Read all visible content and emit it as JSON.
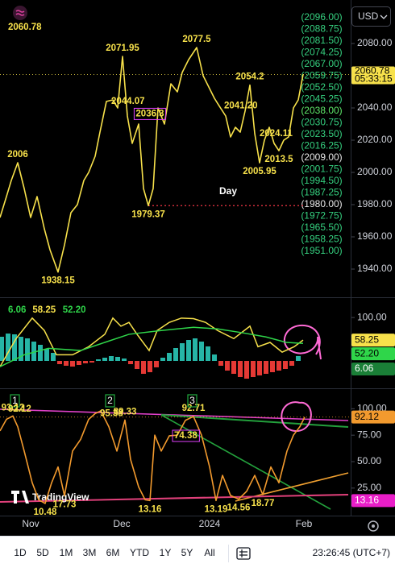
{
  "toolbar": {
    "currency": "USD",
    "ranges": [
      "1D",
      "5D",
      "1M",
      "3M",
      "6M",
      "YTD",
      "1Y",
      "5Y",
      "All"
    ],
    "clock": "23:26:45 (UTC+7)"
  },
  "watermark": "TradingView",
  "chart_data": [
    {
      "type": "line",
      "color": "#f7e14b",
      "xlim": [
        0,
        109
      ],
      "ylim": [
        1923,
        2107
      ],
      "yticks": [
        {
          "value": 2080,
          "label": "2080.00"
        },
        {
          "value": 2060,
          "label": "2060.00"
        },
        {
          "value": 2040,
          "label": "2040.00"
        },
        {
          "value": 2020,
          "label": "2020.00"
        },
        {
          "value": 2000,
          "label": "2000.00"
        },
        {
          "value": 1980,
          "label": "1980.00"
        },
        {
          "value": 1960,
          "label": "1960.00"
        },
        {
          "value": 1940,
          "label": "1940.00"
        }
      ],
      "xticks": [
        {
          "value": 9.5,
          "label": "Nov"
        },
        {
          "value": 37.75,
          "label": "Dec"
        },
        {
          "value": 65,
          "label": "2024"
        },
        {
          "value": 94.25,
          "label": "Feb"
        }
      ],
      "x": [
        0,
        2,
        3.5,
        5.5,
        7.5,
        9.5,
        11.5,
        13.75,
        15.5,
        18,
        20,
        22,
        24,
        26,
        27.5,
        29.5,
        31,
        33,
        35,
        36.5,
        38,
        39.5,
        41,
        43,
        44.5,
        46,
        47.5,
        49,
        51,
        53,
        55,
        56.5,
        58.5,
        61,
        63,
        65,
        66.5,
        68,
        70,
        71.5,
        73,
        74.5,
        76,
        77.5,
        79,
        80.5,
        82,
        83.5,
        85,
        86.5,
        88,
        89.5,
        91,
        92.5,
        94
      ],
      "values": [
        1972,
        1985,
        1995,
        2006,
        1990,
        1972,
        1985,
        1965,
        1952,
        1938.15,
        1955,
        1975,
        1980,
        1995,
        2000,
        2010,
        2025,
        2044.07,
        2045,
        2040,
        2071.95,
        2035,
        2018,
        2030,
        1990,
        1979.37,
        1990,
        2040,
        2030,
        2055,
        2050,
        2062,
        2070,
        2077.5,
        2060,
        2052,
        2046,
        2041.2,
        2035,
        2022,
        2028,
        2025,
        2038,
        2054.2,
        2024.11,
        2005.95,
        2020,
        2028,
        2018,
        2013.5,
        2020,
        2022,
        2040,
        2045,
        2060.78
      ],
      "value_labels": [
        null,
        null,
        null,
        null,
        null,
        null,
        null,
        null,
        null,
        null,
        null,
        null,
        null,
        null,
        null,
        null,
        null,
        null,
        null,
        null,
        null,
        null,
        null,
        null,
        null,
        null,
        null,
        null,
        null,
        null,
        null,
        null,
        null,
        null,
        null,
        null,
        null,
        "2041.20",
        null,
        null,
        null,
        null,
        null,
        null,
        null,
        null,
        null,
        null,
        null,
        null,
        null,
        null,
        null,
        null,
        null
      ],
      "annotated": [
        3,
        9,
        17,
        20,
        25,
        33,
        37,
        43,
        44,
        45,
        49
      ],
      "box_note": {
        "x": 46.5,
        "value": 2036.3,
        "color": "#e040fb"
      },
      "note": "Day",
      "countdown": "05:33:15",
      "support": {
        "x": 46,
        "value": 1979.37,
        "color": "#f23645"
      },
      "level_color": "#35d07f",
      "levels": [
        {
          "value": 2096,
          "label": "(2096.00)"
        },
        {
          "value": 2088.75,
          "label": "(2088.75)"
        },
        {
          "value": 2081.5,
          "label": "(2081.50)"
        },
        {
          "value": 2074.25,
          "label": "(2074.25)"
        },
        {
          "value": 2067,
          "label": "(2067.00)"
        },
        {
          "value": 2059.75,
          "label": "(2059.75)"
        },
        {
          "value": 2052.5,
          "label": "(2052.50)"
        },
        {
          "value": 2045.25,
          "label": "(2045.25)"
        },
        {
          "value": 2038,
          "label": "(2038.00)",
          "color": "#5ee86a"
        },
        {
          "value": 2030.75,
          "label": "(2030.75)"
        },
        {
          "value": 2023.5,
          "label": "(2023.50)"
        },
        {
          "value": 2016.25,
          "label": "(2016.25)"
        },
        {
          "value": 2009,
          "label": "(2009.00)",
          "color": "#e6e6e6"
        },
        {
          "value": 2001.75,
          "label": "(2001.75)"
        },
        {
          "value": 1994.5,
          "label": "(1994.50)"
        },
        {
          "value": 1987.25,
          "label": "(1987.25)"
        },
        {
          "value": 1980,
          "label": "(1980.00)",
          "color": "#e6e6e6"
        },
        {
          "value": 1972.75,
          "label": "(1972.75)"
        },
        {
          "value": 1965.5,
          "label": "(1965.50)"
        },
        {
          "value": 1958.25,
          "label": "(1958.25)"
        },
        {
          "value": 1951,
          "label": "(1951.00)"
        }
      ]
    },
    {
      "type": "oscillator",
      "xlim": [
        0,
        109
      ],
      "ylim": [
        -28,
        136
      ],
      "y2lim": [
        -32,
        78
      ],
      "yticks": [
        {
          "value": 100,
          "label": "100.00"
        }
      ],
      "series": [
        {
          "type": "bar",
          "axis": "y2",
          "color_up": "#26b5a6",
          "color_down": "#e53935",
          "x": [
            0.5,
            2.5,
            4.5,
            6.5,
            8.5,
            10.5,
            12.5,
            14.5,
            16.5,
            18.5,
            20.5,
            22.5,
            24.5,
            26.5,
            28.5,
            30.5,
            32.5,
            34.5,
            36.5,
            38.5,
            40.5,
            42.5,
            44.5,
            46.5,
            48.5,
            50.5,
            52.5,
            54.5,
            56.5,
            58.5,
            60.5,
            62.5,
            64.5,
            66.5,
            68.5,
            70.5,
            72.5,
            74.5,
            76.5,
            78.5,
            80.5,
            82.5,
            84.5,
            86.5,
            88.5,
            90.5,
            92.5
          ],
          "values": [
            30,
            34,
            33,
            30,
            28,
            24,
            20,
            15,
            10,
            -4,
            -6,
            -7,
            -5,
            -3,
            -2,
            2,
            4,
            6,
            5,
            3,
            -4,
            -10,
            -16,
            -14,
            -8,
            4,
            10,
            16,
            22,
            26,
            28,
            24,
            18,
            8,
            -6,
            -12,
            -16,
            -20,
            -22,
            -20,
            -18,
            -16,
            -14,
            -12,
            -10,
            -6,
            6.06
          ]
        },
        {
          "type": "line",
          "color": "#f7e14b",
          "x": [
            0,
            5,
            10,
            13.75,
            17.5,
            22.5,
            27.5,
            32.5,
            35,
            37.5,
            40,
            42.5,
            46.25,
            48.75,
            52.5,
            56.25,
            60,
            63.75,
            67.5,
            72.5,
            77.5,
            80,
            83.75,
            87.5,
            91.25,
            94
          ],
          "values": [
            9,
            61,
            99,
            76,
            31,
            31,
            46,
            69,
            99,
            84,
            91,
            69,
            39,
            76,
            91,
            99,
            98,
            91,
            76,
            61,
            84,
            46,
            54,
            36,
            46,
            58.25
          ]
        },
        {
          "type": "line",
          "color": "#2fd64a",
          "x": [
            0,
            7.5,
            15,
            25,
            32.5,
            40,
            50,
            60,
            67.5,
            75,
            82.5,
            88.75,
            94
          ],
          "values": [
            9,
            31,
            43,
            39,
            54,
            69,
            76,
            82,
            79,
            72,
            64,
            54,
            52.2
          ],
          "value_labels": [
            null,
            null,
            null,
            null,
            null,
            null,
            null,
            null,
            null,
            null,
            null,
            null,
            "52.20"
          ]
        }
      ]
    },
    {
      "type": "line",
      "color": "#f29a2e",
      "xlim": [
        0,
        109
      ],
      "ylim": [
        -1,
        117
      ],
      "yticks": [
        {
          "value": 100,
          "label": "100.00"
        },
        {
          "value": 75,
          "label": "75.00"
        },
        {
          "value": 50,
          "label": "50.00"
        },
        {
          "value": 25,
          "label": "25.00"
        }
      ],
      "x": [
        0,
        2,
        4,
        5.5,
        7.5,
        10,
        12,
        14,
        16,
        18,
        20,
        22.5,
        25,
        27.5,
        29.5,
        31.25,
        33.75,
        36.25,
        38.75,
        40.5,
        43,
        45,
        46.5,
        48,
        50,
        52.5,
        55,
        57.5,
        60,
        62.5,
        65,
        67,
        69,
        71.5,
        74,
        76.5,
        79,
        81.5,
        84,
        86.5,
        89,
        91,
        93,
        94.5
      ],
      "values": [
        79,
        90,
        93.12,
        83,
        60,
        30,
        14,
        10.48,
        30,
        45,
        17.73,
        60,
        71,
        90,
        95.38,
        98,
        83,
        60,
        89.33,
        52,
        26,
        14,
        13.16,
        75,
        60,
        74.38,
        75,
        89,
        92.71,
        75,
        45,
        13.19,
        37,
        18,
        14.56,
        22,
        37,
        18.77,
        45,
        30,
        60,
        75,
        83,
        92.12
      ],
      "annotated": [
        2,
        7,
        10,
        14,
        18,
        22,
        25,
        28,
        31,
        34,
        37
      ],
      "boxed": [
        25
      ],
      "annotation_color": "#f7e14b",
      "level": {
        "value": 13.16,
        "color": "#e91ec8"
      },
      "markers": [
        {
          "x": 4.5,
          "label": "1"
        },
        {
          "x": 34,
          "label": "2"
        },
        {
          "x": 59.5,
          "label": "3"
        }
      ],
      "marker_color": "#1f9e3a"
    }
  ]
}
